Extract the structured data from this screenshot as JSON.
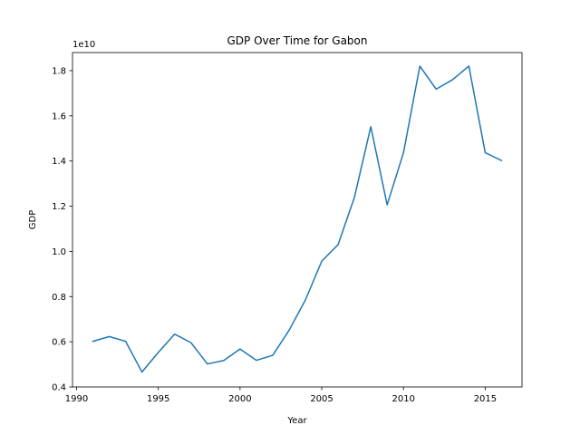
{
  "chart_data": {
    "type": "line",
    "title": "GDP Over Time for Gabon",
    "xlabel": "Year",
    "ylabel": "GDP",
    "y_multiplier_label": "1e10",
    "xlim": [
      1989.75,
      2017.25
    ],
    "ylim": [
      0.4,
      1.88
    ],
    "x_ticks": [
      1990,
      1995,
      2000,
      2005,
      2010,
      2015
    ],
    "x_tick_labels": [
      "1990",
      "1995",
      "2000",
      "2005",
      "2010",
      "2015"
    ],
    "y_ticks": [
      0.4,
      0.6,
      0.8,
      1.0,
      1.2,
      1.4,
      1.6,
      1.8
    ],
    "y_tick_labels": [
      "0.4",
      "0.6",
      "0.8",
      "1.0",
      "1.2",
      "1.4",
      "1.6",
      "1.8"
    ],
    "grid": false,
    "series": [
      {
        "color": "#1f77b4",
        "x": [
          1991,
          1992,
          1993,
          1994,
          1995,
          1996,
          1997,
          1998,
          1999,
          2000,
          2001,
          2002,
          2003,
          2004,
          2005,
          2006,
          2007,
          2008,
          2009,
          2010,
          2011,
          2012,
          2013,
          2014,
          2015,
          2016
        ],
        "y": [
          0.602,
          0.623,
          0.602,
          0.466,
          0.553,
          0.634,
          0.596,
          0.502,
          0.517,
          0.568,
          0.518,
          0.54,
          0.651,
          0.785,
          0.957,
          1.03,
          1.24,
          1.552,
          1.206,
          1.437,
          1.82,
          1.718,
          1.76,
          1.82,
          1.437,
          1.402
        ]
      }
    ]
  }
}
